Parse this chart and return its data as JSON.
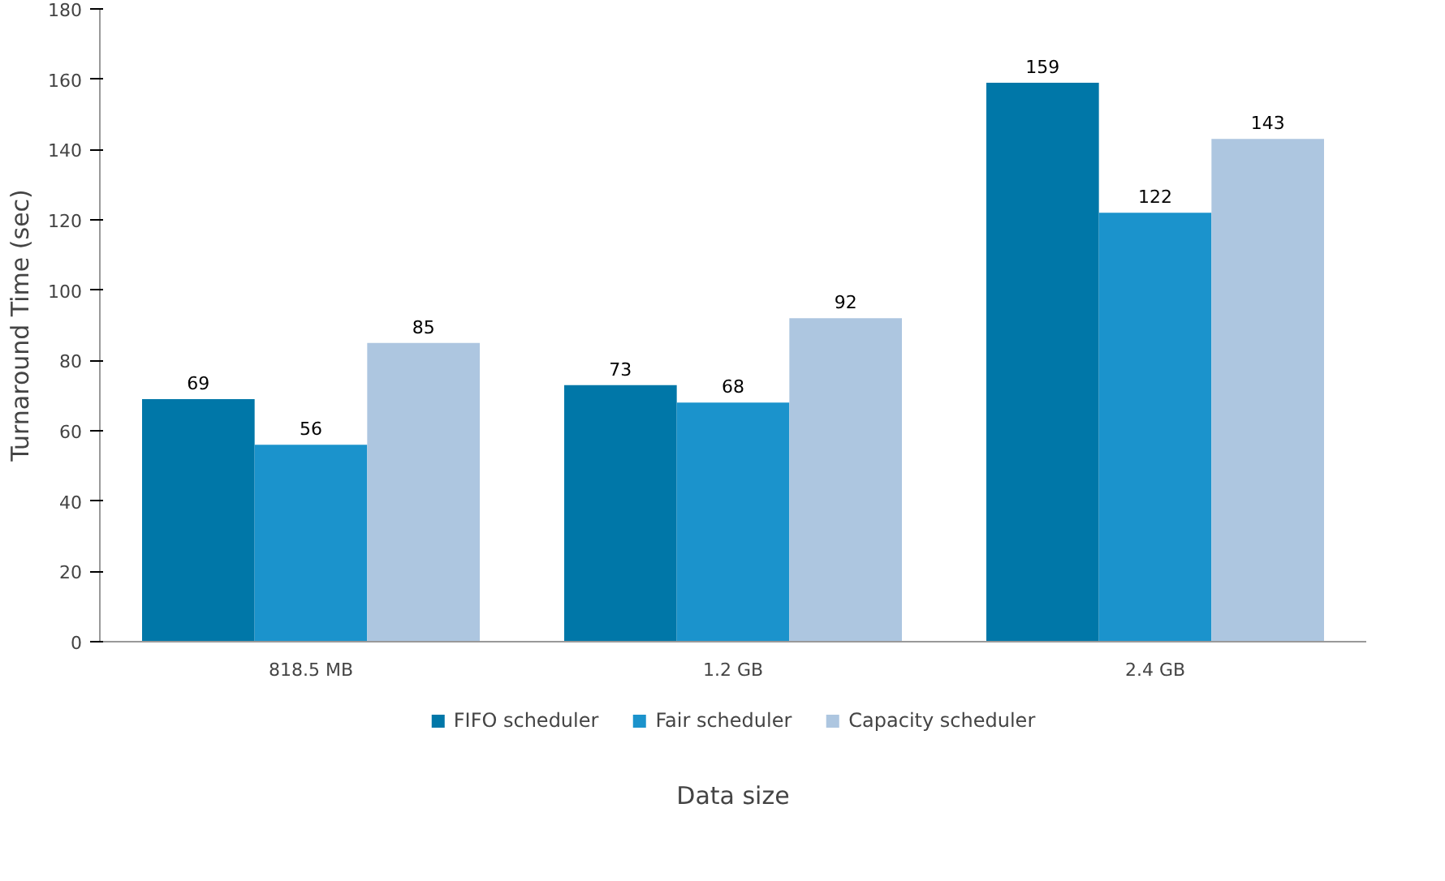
{
  "chart_data": {
    "type": "bar",
    "xlabel": "Data size",
    "ylabel": "Turnaround Time (sec)",
    "categories": [
      "818.5 MB",
      "1.2 GB",
      "2.4 GB"
    ],
    "series": [
      {
        "name": "FIFO scheduler",
        "color": "#0077a8",
        "values": [
          69,
          73,
          159
        ]
      },
      {
        "name": "Fair scheduler",
        "color": "#1b93cc",
        "values": [
          56,
          68,
          122
        ]
      },
      {
        "name": "Capacity scheduler",
        "color": "#adc6e0",
        "values": [
          85,
          92,
          143
        ]
      }
    ],
    "ylim": [
      0,
      180
    ],
    "yticks": [
      0,
      20,
      40,
      60,
      80,
      100,
      120,
      140,
      160,
      180
    ],
    "grid": false,
    "legend": "bottom",
    "data_labels": true
  }
}
